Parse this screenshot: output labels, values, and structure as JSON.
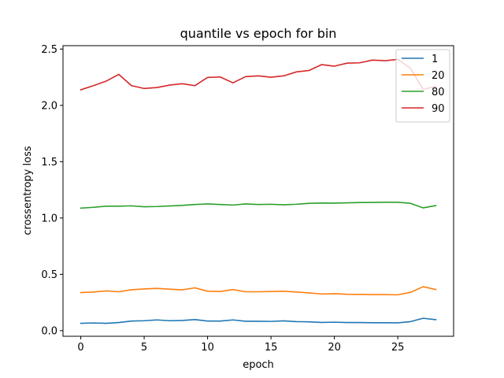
{
  "chart_data": {
    "type": "line",
    "title": "quantile vs epoch for bin",
    "xlabel": "epoch",
    "ylabel": "crossentropy loss",
    "xlim": [
      -1.4,
      29.4
    ],
    "ylim": [
      -0.05,
      2.53
    ],
    "xticks": [
      0,
      5,
      10,
      15,
      20,
      25
    ],
    "xtick_labels": [
      "0",
      "5",
      "10",
      "15",
      "20",
      "25"
    ],
    "yticks": [
      0.0,
      0.5,
      1.0,
      1.5,
      2.0,
      2.5
    ],
    "ytick_labels": [
      "0.0",
      "0.5",
      "1.0",
      "1.5",
      "2.0",
      "2.5"
    ],
    "grid": false,
    "legend_position": "top-right",
    "x": [
      0,
      1,
      2,
      3,
      4,
      5,
      6,
      7,
      8,
      9,
      10,
      11,
      12,
      13,
      14,
      15,
      16,
      17,
      18,
      19,
      20,
      21,
      22,
      23,
      24,
      25,
      26,
      27,
      28
    ],
    "series": [
      {
        "name": "1",
        "color": "#1f77b4",
        "values": [
          0.065,
          0.068,
          0.065,
          0.072,
          0.085,
          0.088,
          0.095,
          0.088,
          0.09,
          0.098,
          0.085,
          0.085,
          0.095,
          0.083,
          0.083,
          0.082,
          0.087,
          0.08,
          0.078,
          0.073,
          0.075,
          0.072,
          0.072,
          0.07,
          0.07,
          0.069,
          0.08,
          0.11,
          0.097
        ]
      },
      {
        "name": "20",
        "color": "#ff7f0e",
        "values": [
          0.338,
          0.343,
          0.353,
          0.345,
          0.363,
          0.37,
          0.375,
          0.368,
          0.362,
          0.38,
          0.35,
          0.347,
          0.365,
          0.345,
          0.345,
          0.347,
          0.35,
          0.343,
          0.335,
          0.325,
          0.328,
          0.323,
          0.322,
          0.32,
          0.32,
          0.318,
          0.34,
          0.39,
          0.365
        ]
      },
      {
        "name": "80",
        "color": "#2ca02c",
        "values": [
          1.088,
          1.095,
          1.105,
          1.105,
          1.108,
          1.1,
          1.102,
          1.107,
          1.112,
          1.12,
          1.125,
          1.12,
          1.115,
          1.125,
          1.12,
          1.122,
          1.117,
          1.122,
          1.13,
          1.133,
          1.132,
          1.135,
          1.137,
          1.138,
          1.14,
          1.14,
          1.13,
          1.09,
          1.11
        ]
      },
      {
        "name": "90",
        "color": "#d62728",
        "values": [
          2.138,
          2.175,
          2.215,
          2.275,
          2.175,
          2.15,
          2.158,
          2.18,
          2.192,
          2.175,
          2.248,
          2.252,
          2.2,
          2.255,
          2.262,
          2.25,
          2.262,
          2.297,
          2.31,
          2.362,
          2.348,
          2.375,
          2.378,
          2.402,
          2.397,
          2.408,
          2.33,
          2.14,
          2.17
        ]
      }
    ]
  }
}
